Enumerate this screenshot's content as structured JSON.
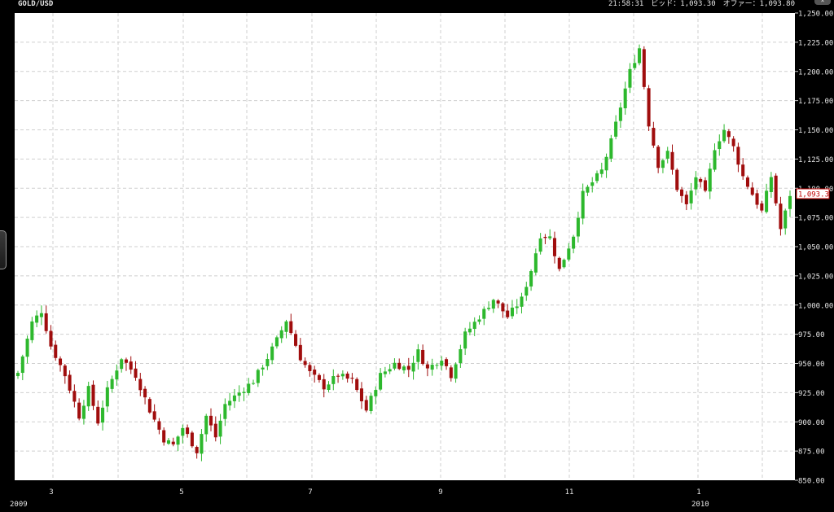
{
  "header": {
    "symbol": "GOLD/USD",
    "quote": "21:58:31　ビッド：1,093.30　オファー：1,093.80"
  },
  "last_price_label": "1,093.3",
  "colors": {
    "background": "#000000",
    "plot_background": "#ffffff",
    "grid": "#cfcfcf",
    "up": "#2db82d",
    "down": "#a00d0d",
    "text": "#e6e6e6",
    "price_tag_border": "#c00000"
  },
  "chart_data": {
    "type": "candlestick",
    "title": "",
    "xlabel": "",
    "ylabel": "",
    "ylim": [
      850,
      1250
    ],
    "yticks": [
      850,
      875,
      900,
      925,
      950,
      975,
      1000,
      1025,
      1050,
      1075,
      1100,
      1125,
      1150,
      1175,
      1200,
      1225,
      1250
    ],
    "ytick_labels": [
      "850.00",
      "875.00",
      "900.00",
      "925.00",
      "950.00",
      "975.00",
      "1,000.00",
      "1,025.00",
      "1,050.00",
      "1,075.00",
      "1,100.00",
      "1,125.00",
      "1,150.00",
      "1,175.00",
      "1,200.00",
      "1,225.00",
      "1,250.00"
    ],
    "xtick_labels": [
      "3",
      "5",
      "7",
      "9",
      "11",
      "1"
    ],
    "year_labels": [
      "2009",
      "2010"
    ],
    "grid": true,
    "last_price": 1093.3,
    "close_path": [
      [
        0,
        942
      ],
      [
        3,
        985
      ],
      [
        5,
        995
      ],
      [
        7,
        965
      ],
      [
        10,
        940
      ],
      [
        13,
        905
      ],
      [
        15,
        928
      ],
      [
        17,
        900
      ],
      [
        19,
        927
      ],
      [
        22,
        955
      ],
      [
        25,
        940
      ],
      [
        28,
        910
      ],
      [
        31,
        885
      ],
      [
        33,
        880
      ],
      [
        35,
        895
      ],
      [
        38,
        875
      ],
      [
        40,
        905
      ],
      [
        42,
        887
      ],
      [
        44,
        915
      ],
      [
        47,
        925
      ],
      [
        50,
        935
      ],
      [
        53,
        955
      ],
      [
        55,
        970
      ],
      [
        57,
        987
      ],
      [
        60,
        955
      ],
      [
        62,
        942
      ],
      [
        65,
        930
      ],
      [
        68,
        940
      ],
      [
        71,
        935
      ],
      [
        74,
        910
      ],
      [
        77,
        940
      ],
      [
        80,
        950
      ],
      [
        83,
        945
      ],
      [
        85,
        960
      ],
      [
        87,
        945
      ],
      [
        90,
        955
      ],
      [
        92,
        940
      ],
      [
        95,
        975
      ],
      [
        98,
        990
      ],
      [
        101,
        1005
      ],
      [
        104,
        990
      ],
      [
        107,
        1005
      ],
      [
        109,
        1030
      ],
      [
        111,
        1060
      ],
      [
        113,
        1058
      ],
      [
        115,
        1030
      ],
      [
        118,
        1060
      ],
      [
        120,
        1095
      ],
      [
        122,
        1105
      ],
      [
        124,
        1115
      ],
      [
        126,
        1140
      ],
      [
        128,
        1170
      ],
      [
        130,
        1200
      ],
      [
        132,
        1220
      ],
      [
        134,
        1155
      ],
      [
        136,
        1120
      ],
      [
        138,
        1130
      ],
      [
        140,
        1100
      ],
      [
        142,
        1085
      ],
      [
        144,
        1110
      ],
      [
        146,
        1095
      ],
      [
        148,
        1135
      ],
      [
        150,
        1150
      ],
      [
        152,
        1135
      ],
      [
        154,
        1110
      ],
      [
        156,
        1095
      ],
      [
        158,
        1080
      ],
      [
        160,
        1110
      ],
      [
        162,
        1065
      ],
      [
        164,
        1093.3
      ]
    ]
  }
}
